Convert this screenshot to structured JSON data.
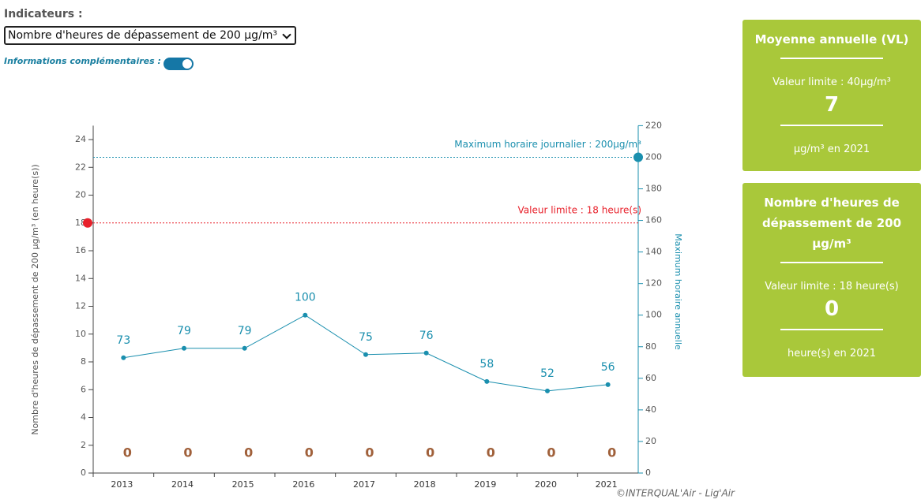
{
  "controls": {
    "indicator_label": "Indicateurs :",
    "indicator_value": "Nombre d'heures de dépassement de 200 µg/m³",
    "toggle_label": "Informations complémentaires :"
  },
  "cards": [
    {
      "title": "Moyenne annuelle (VL)",
      "limit": "Valeur limite : 40µg/m³",
      "value": 7,
      "unit": "µg/m³ en 2021"
    },
    {
      "title": "Nombre d'heures de dépassement de 200 µg/m³",
      "limit": "Valeur limite : 18 heure(s)",
      "value": 0,
      "unit": "heure(s) en 2021"
    }
  ],
  "chart_data": {
    "type": "bar",
    "categories": [
      "2013",
      "2014",
      "2015",
      "2016",
      "2017",
      "2018",
      "2019",
      "2020",
      "2021"
    ],
    "series": [
      {
        "type": "bar",
        "color": "#a0603a",
        "values": [
          0,
          0,
          0,
          0,
          0,
          0,
          0,
          0,
          0
        ]
      },
      {
        "type": "line",
        "axis": "y2",
        "color": "#1a8fae",
        "values": [
          73,
          79,
          79,
          100,
          75,
          76,
          58,
          52,
          56
        ]
      }
    ],
    "y_label": "Nombre d'heures de dépassement de 200 µg/m³ (en heure(s))",
    "y2_label": "Maximum horaire annuelle",
    "ylim": [
      0,
      25
    ],
    "yticks": [
      0,
      2,
      4,
      6,
      8,
      10,
      12,
      14,
      16,
      18,
      20,
      22,
      24
    ],
    "y2lim": [
      0,
      220
    ],
    "y2ticks": [
      0,
      20,
      40,
      60,
      80,
      100,
      120,
      140,
      160,
      180,
      200,
      220
    ],
    "annotations": [
      {
        "label": "Valeur limite : 18 heure(s)",
        "value": 18,
        "axis": "y",
        "color": "#e8202a"
      },
      {
        "label": "Maximum horaire journalier : 200µg/m³",
        "value": 200,
        "axis": "y2",
        "color": "#1a8fae"
      }
    ],
    "credit": "©INTERQUAL'Air - Lig'Air"
  }
}
